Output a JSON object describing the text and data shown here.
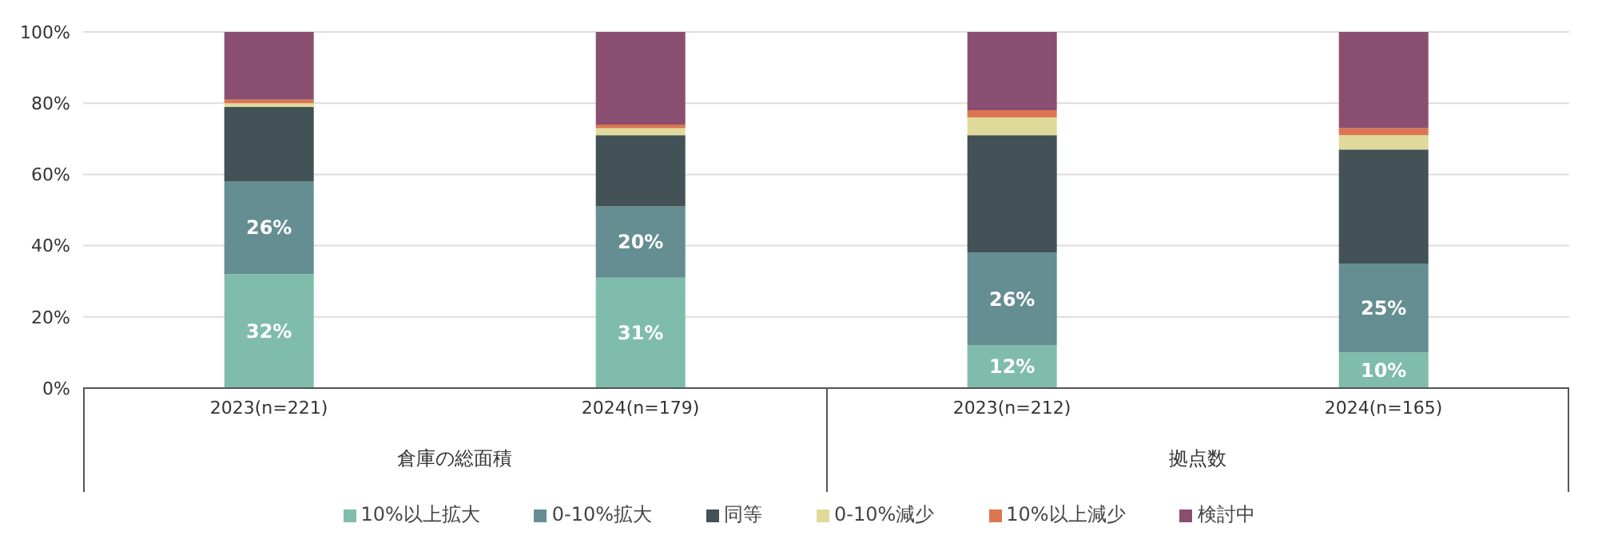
{
  "chart_data": {
    "type": "bar",
    "stacked": true,
    "categories": [
      "2023(n=221)",
      "2024(n=179)",
      "2023(n=212)",
      "2024(n=165)"
    ],
    "annotations": [
      "倉庫の総面積",
      "拠点数"
    ],
    "series": [
      {
        "name": "10%以上拡大",
        "color": "#7fbcab",
        "values": [
          32,
          31,
          12,
          10
        ],
        "value_labels": [
          "32%",
          "31%",
          "12%",
          "10%"
        ]
      },
      {
        "name": "0-10%拡大",
        "color": "#648e91",
        "values": [
          26,
          20,
          26,
          25
        ],
        "value_labels": [
          "26%",
          "20%",
          "26%",
          "25%"
        ]
      },
      {
        "name": "同等",
        "color": "#425256",
        "values": [
          21,
          20,
          33,
          32
        ]
      },
      {
        "name": "0-10%減少",
        "color": "#e0da9a",
        "values": [
          1,
          2,
          5,
          4
        ]
      },
      {
        "name": "10%以上減少",
        "color": "#de7552",
        "values": [
          1,
          1,
          2,
          2
        ]
      },
      {
        "name": "検討中",
        "color": "#8a4f70",
        "values": [
          19,
          26,
          22,
          27
        ]
      }
    ],
    "ylim": [
      0,
      100
    ],
    "yticks": [
      {
        "value": 0,
        "label": "0%"
      },
      {
        "value": 20,
        "label": "20%"
      },
      {
        "value": 40,
        "label": "40%"
      },
      {
        "value": 60,
        "label": "60%"
      },
      {
        "value": 80,
        "label": "80%"
      },
      {
        "value": 100,
        "label": "100%"
      }
    ],
    "grid": "y",
    "legend": "bottom"
  }
}
